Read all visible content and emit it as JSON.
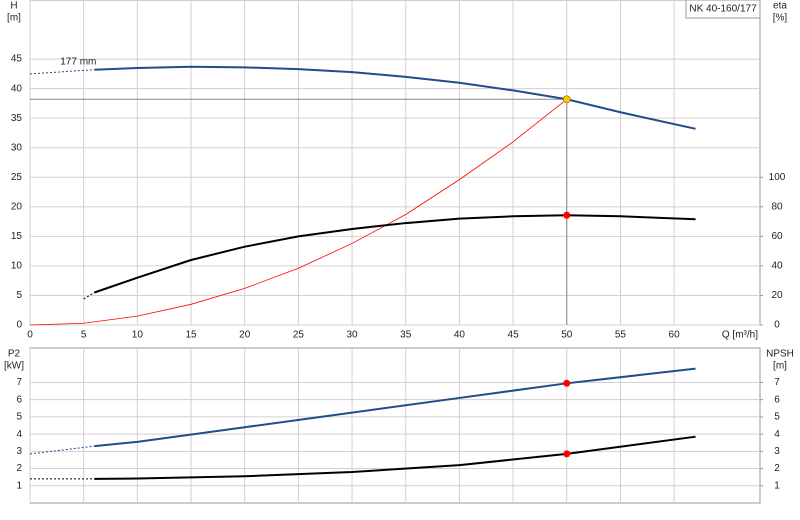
{
  "chart_data": [
    {
      "type": "line",
      "title": "NK 40-160/177",
      "annotation": "177 mm",
      "ylabel": "H",
      "yunit": "[m]",
      "y2label": "eta",
      "y2unit": "[%]",
      "xlabel": "Q [m³/h]",
      "xlim": [
        0,
        68
      ],
      "xticks": [
        0,
        5,
        10,
        15,
        20,
        25,
        30,
        35,
        40,
        45,
        50,
        55,
        60
      ],
      "ylim": [
        0,
        55
      ],
      "yticks": [
        0,
        5,
        10,
        15,
        20,
        25,
        30,
        35,
        40,
        45
      ],
      "y2lim": [
        0,
        220
      ],
      "y2ticks": [
        0,
        20,
        40,
        60,
        80,
        100
      ],
      "grid": true,
      "series": [
        {
          "color": "#1f4e8c",
          "axis": "y",
          "style": "dotted",
          "x": [
            0,
            6
          ],
          "values": [
            42.5,
            43.2
          ]
        },
        {
          "color": "#1f4e8c",
          "axis": "y",
          "style": "solid",
          "x": [
            6,
            10,
            15,
            20,
            25,
            30,
            35,
            40,
            45,
            50,
            55,
            62
          ],
          "values": [
            43.2,
            43.5,
            43.7,
            43.6,
            43.3,
            42.8,
            42.0,
            41.0,
            39.7,
            38.2,
            36.0,
            33.2
          ]
        },
        {
          "color": "#ff0000",
          "axis": "y",
          "style": "thin",
          "x": [
            0,
            5,
            10,
            15,
            20,
            25,
            30,
            35,
            40,
            45,
            50
          ],
          "values": [
            0,
            0.3,
            1.5,
            3.5,
            6.2,
            9.6,
            13.8,
            18.7,
            24.6,
            31.0,
            38.2
          ]
        },
        {
          "color": "#000000",
          "axis": "y2",
          "style": "dotted",
          "x": [
            5,
            6
          ],
          "values": [
            17.6,
            22
          ]
        },
        {
          "color": "#000000",
          "axis": "y2",
          "style": "solid",
          "x": [
            6,
            10,
            15,
            20,
            25,
            30,
            35,
            40,
            45,
            50,
            55,
            62
          ],
          "values": [
            22,
            32,
            44,
            53,
            60,
            65,
            69,
            72,
            73.6,
            74.3,
            73.6,
            71.6
          ]
        }
      ],
      "markers": [
        {
          "x": 50,
          "y": 38.2,
          "axis": "y",
          "color": "#ffcc00",
          "guides": true
        },
        {
          "x": 50,
          "y": 74.3,
          "axis": "y2",
          "color": "#ff0000",
          "guides": false
        }
      ]
    },
    {
      "type": "line",
      "ylabel": "P2",
      "yunit": "[kW]",
      "y2label": "NPSH",
      "y2unit": "[m]",
      "xlim": [
        0,
        68
      ],
      "ylim": [
        0,
        9
      ],
      "yticks": [
        1,
        2,
        3,
        4,
        5,
        6,
        7
      ],
      "y2lim": [
        0,
        9
      ],
      "y2ticks": [
        1,
        2,
        3,
        4,
        5,
        6,
        7
      ],
      "grid": true,
      "series": [
        {
          "color": "#1f4e8c",
          "axis": "y",
          "style": "dotted",
          "x": [
            0,
            6
          ],
          "values": [
            2.85,
            3.3
          ]
        },
        {
          "color": "#1f4e8c",
          "axis": "y",
          "style": "solid",
          "x": [
            6,
            10,
            20,
            30,
            40,
            50,
            62
          ],
          "values": [
            3.3,
            3.55,
            4.4,
            5.25,
            6.1,
            6.95,
            7.8
          ]
        },
        {
          "color": "#000000",
          "axis": "y2",
          "style": "dotted",
          "x": [
            0,
            6
          ],
          "values": [
            1.4,
            1.4
          ]
        },
        {
          "color": "#000000",
          "axis": "y2",
          "style": "solid",
          "x": [
            6,
            10,
            20,
            30,
            40,
            50,
            62
          ],
          "values": [
            1.4,
            1.42,
            1.55,
            1.8,
            2.2,
            2.85,
            3.85
          ]
        }
      ],
      "markers": [
        {
          "x": 50,
          "y": 6.95,
          "axis": "y",
          "color": "#ff0000",
          "guides": false
        },
        {
          "x": 50,
          "y": 2.85,
          "axis": "y2",
          "color": "#ff0000",
          "guides": false
        }
      ]
    }
  ]
}
